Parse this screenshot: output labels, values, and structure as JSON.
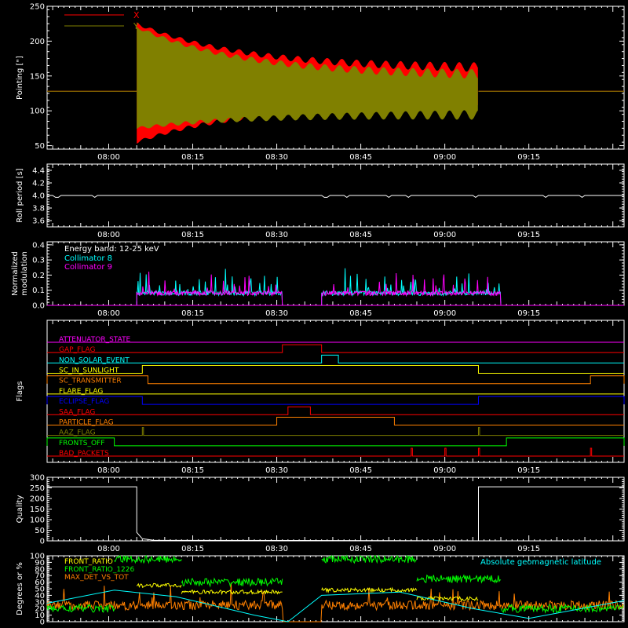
{
  "colors": {
    "background": "#000000",
    "axis": "#ffffff",
    "x_series": "#ff0000",
    "y_series": "#808000",
    "collimator8": "#00ffff",
    "collimator9": "#ff00ff",
    "front_ratio": "#ffff00",
    "front_ratio_1226": "#00ff00",
    "max_det_vs_tot": "#ff8000",
    "geomag_lat": "#00ffff"
  },
  "time_ticks": [
    "08:00",
    "08:15",
    "08:30",
    "08:45",
    "09:00",
    "09:15"
  ],
  "time_axis": {
    "start": "07:49",
    "end": "09:32",
    "tick_values": [
      "08:00",
      "08:15",
      "08:30",
      "08:45",
      "09:00",
      "09:15"
    ]
  },
  "chart_data": [
    {
      "type": "area",
      "ylabel": "Pointing [\"]",
      "ylim": [
        45,
        250
      ],
      "yticks": [
        50,
        100,
        150,
        200,
        250
      ],
      "legend": "top-left",
      "series": [
        {
          "name": "X",
          "color": "#ff0000",
          "steady": 128,
          "envelope_start": [
            55,
            225
          ],
          "envelope_end": [
            110,
            160
          ],
          "time_range": [
            "08:05",
            "09:06"
          ]
        },
        {
          "name": "Y",
          "color": "#808000",
          "steady": 128,
          "envelope_start": [
            75,
            220
          ],
          "envelope_end": [
            95,
            150
          ],
          "time_range": [
            "08:05",
            "09:06"
          ]
        }
      ]
    },
    {
      "type": "line",
      "ylabel": "Roll period [s]",
      "ylim": [
        3.5,
        4.5
      ],
      "yticks": [
        3.6,
        3.8,
        4.0,
        4.2,
        4.4
      ],
      "series": [
        {
          "name": "",
          "value": 4.0,
          "time_range": [
            "07:49",
            "09:32"
          ]
        }
      ]
    },
    {
      "type": "line",
      "ylabel": "Normalized modulation",
      "ylim": [
        0,
        0.42
      ],
      "yticks": [
        0.0,
        0.1,
        0.2,
        0.3,
        0.4
      ],
      "annotation": "Energy band: 12-25 keV",
      "legend": "top-left",
      "series": [
        {
          "name": "Collimator 8",
          "color": "#00ffff",
          "baseline": 0.08,
          "segments": [
            [
              "08:05",
              "08:31"
            ],
            [
              "08:38",
              "09:10"
            ]
          ]
        },
        {
          "name": "Collimator 9",
          "color": "#ff00ff",
          "baseline": 0.08,
          "segments": [
            [
              "08:05",
              "08:31"
            ],
            [
              "08:38",
              "09:10"
            ]
          ]
        }
      ]
    },
    {
      "type": "table",
      "ylabel": "Flags",
      "flags": [
        {
          "name": "ATTENUATOR_STATE",
          "color": "#ff00ff",
          "high": []
        },
        {
          "name": "GAP_FLAG",
          "color": "#ff0000",
          "high": [
            [
              "08:31",
              "08:38"
            ]
          ]
        },
        {
          "name": "NON_SOLAR_EVENT",
          "color": "#00ffff",
          "high": [
            [
              "08:38",
              "08:41"
            ]
          ]
        },
        {
          "name": "SC_IN_SUNLIGHT",
          "color": "#ffff00",
          "high": [
            [
              "08:06",
              "09:06"
            ]
          ]
        },
        {
          "name": "SC_TRANSMITTER",
          "color": "#ff8000",
          "high": [
            [
              "07:49",
              "08:07"
            ],
            [
              "09:26",
              "09:32"
            ]
          ]
        },
        {
          "name": "FLARE_FLAG",
          "color": "#ffff00",
          "high": []
        },
        {
          "name": "ECLIPSE_FLAG",
          "color": "#0000ff",
          "high": [
            [
              "07:49",
              "08:06"
            ],
            [
              "09:06",
              "09:32"
            ]
          ]
        },
        {
          "name": "SAA_FLAG",
          "color": "#ff0000",
          "high": [
            [
              "08:32",
              "08:36"
            ]
          ]
        },
        {
          "name": "PARTICLE_FLAG",
          "color": "#ff8000",
          "high": [
            [
              "08:30",
              "08:51"
            ]
          ]
        },
        {
          "name": "AAZ_FLAG",
          "color": "#808000",
          "high": [
            [
              "08:06",
              "08:06"
            ],
            [
              "09:06",
              "09:06"
            ]
          ]
        },
        {
          "name": "FRONTS_OFF",
          "color": "#00ff00",
          "high": [
            [
              "07:49",
              "08:01"
            ],
            [
              "09:11",
              "09:32"
            ]
          ]
        },
        {
          "name": "BAD_PACKETS",
          "color": "#ff0000",
          "high": [
            [
              "08:54",
              "08:54"
            ],
            [
              "09:00",
              "09:00"
            ],
            [
              "09:06",
              "09:06"
            ],
            [
              "09:26",
              "09:26"
            ]
          ]
        }
      ]
    },
    {
      "type": "line",
      "ylabel": "Quality",
      "ylim": [
        0,
        300
      ],
      "yticks": [
        0,
        50,
        100,
        150,
        200,
        250,
        300
      ],
      "series": [
        {
          "name": "",
          "color": "#ffffff",
          "points": [
            [
              "07:49",
              255
            ],
            [
              "08:05",
              255
            ],
            [
              "08:05",
              40
            ],
            [
              "08:06",
              10
            ],
            [
              "08:08",
              3
            ],
            [
              "09:06",
              0
            ],
            [
              "09:06",
              255
            ],
            [
              "09:32",
              255
            ]
          ]
        }
      ]
    },
    {
      "type": "line",
      "ylabel": "Degrees or %",
      "ylim": [
        0,
        100
      ],
      "yticks": [
        0,
        10,
        20,
        30,
        40,
        50,
        60,
        70,
        80,
        90,
        100
      ],
      "legend": "top-left",
      "annotation": "Absolute geomagnetic latitude",
      "series": [
        {
          "name": "FRONT_RATIO",
          "color": "#ffff00",
          "levels": [
            [
              "08:05",
              "08:13",
              55
            ],
            [
              "08:13",
              "08:31",
              45
            ],
            [
              "08:38",
              "08:55",
              48
            ],
            [
              "08:55",
              "09:06",
              35
            ]
          ]
        },
        {
          "name": "FRONT_RATIO_1226",
          "color": "#00ff00",
          "levels": [
            [
              "07:49",
              "08:01",
              20
            ],
            [
              "08:01",
              "08:13",
              95
            ],
            [
              "08:13",
              "08:31",
              60
            ],
            [
              "08:38",
              "08:55",
              95
            ],
            [
              "08:55",
              "09:10",
              65
            ],
            [
              "09:10",
              "09:32",
              20
            ]
          ]
        },
        {
          "name": "MAX_DET_VS_TOT",
          "color": "#ff8000",
          "base": 25
        },
        {
          "name": "Absolute geomagnetic latitude",
          "color": "#00ffff",
          "points": [
            [
              "07:49",
              28
            ],
            [
              "08:01",
              48
            ],
            [
              "08:12",
              38
            ],
            [
              "08:26",
              10
            ],
            [
              "08:32",
              0
            ],
            [
              "08:38",
              40
            ],
            [
              "08:52",
              45
            ],
            [
              "09:05",
              20
            ],
            [
              "09:15",
              5
            ],
            [
              "09:32",
              32
            ]
          ]
        }
      ]
    }
  ]
}
